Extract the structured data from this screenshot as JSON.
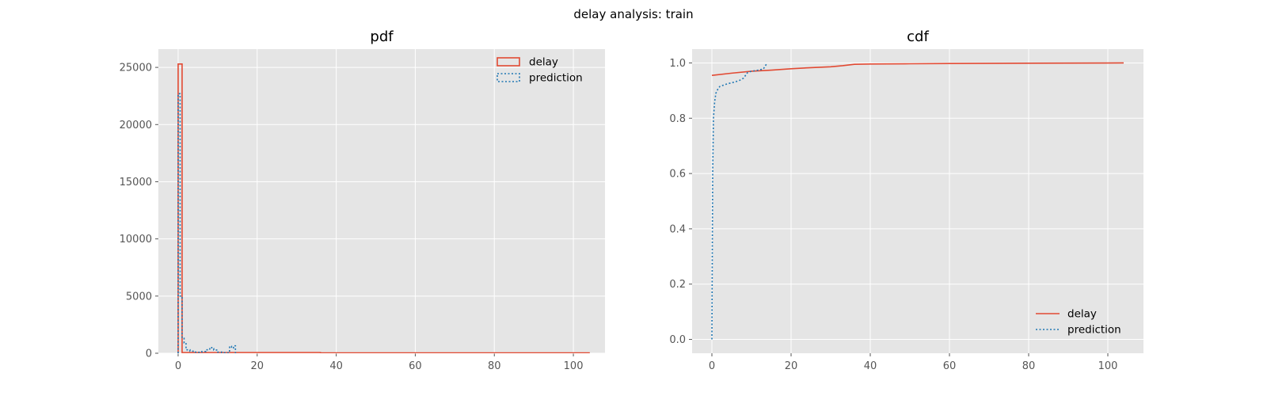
{
  "figure": {
    "suptitle": "delay analysis: train"
  },
  "colors": {
    "delay": "#E24A33",
    "prediction": "#1f77b4",
    "axes_background": "#E5E5E5",
    "grid": "#FFFFFF"
  },
  "chart_data": [
    {
      "type": "histogram",
      "title": "pdf",
      "xlabel": "",
      "ylabel": "",
      "xlim": [
        -5,
        108
      ],
      "ylim": [
        0,
        26600
      ],
      "xticks": [
        0,
        20,
        40,
        60,
        80,
        100
      ],
      "xtick_labels": [
        "0",
        "20",
        "40",
        "60",
        "80",
        "100"
      ],
      "yticks": [
        0,
        5000,
        10000,
        15000,
        20000,
        25000
      ],
      "ytick_labels": [
        "0",
        "5000",
        "10000",
        "15000",
        "20000",
        "25000"
      ],
      "grid": true,
      "legend_position": "upper right",
      "series": [
        {
          "name": "delay",
          "style": "solid step outline",
          "x": [
            0,
            1,
            30,
            36,
            104
          ],
          "y": [
            25300,
            60,
            60,
            30,
            0
          ]
        },
        {
          "name": "prediction",
          "style": "dotted step outline",
          "x": [
            0,
            0.5,
            1,
            1.5,
            2,
            3,
            4,
            5,
            6,
            7,
            8,
            8.5,
            9,
            10,
            11,
            12,
            13,
            13.5,
            14,
            14.5
          ],
          "y": [
            22700,
            5000,
            1300,
            900,
            300,
            180,
            100,
            80,
            150,
            300,
            500,
            400,
            280,
            100,
            50,
            30,
            600,
            450,
            650,
            0
          ]
        }
      ]
    },
    {
      "type": "line",
      "title": "cdf",
      "xlabel": "",
      "ylabel": "",
      "xlim": [
        -5,
        109
      ],
      "ylim": [
        -0.05,
        1.05
      ],
      "xticks": [
        0,
        20,
        40,
        60,
        80,
        100
      ],
      "xtick_labels": [
        "0",
        "20",
        "40",
        "60",
        "80",
        "100"
      ],
      "yticks": [
        0.0,
        0.2,
        0.4,
        0.6,
        0.8,
        1.0
      ],
      "ytick_labels": [
        "0.0",
        "0.2",
        "0.4",
        "0.6",
        "0.8",
        "1.0"
      ],
      "grid": true,
      "legend_position": "lower right",
      "series": [
        {
          "name": "delay",
          "style": "solid",
          "x": [
            0,
            5,
            10,
            15,
            20,
            25,
            30,
            33,
            36,
            40,
            50,
            60,
            80,
            104
          ],
          "y": [
            0.955,
            0.963,
            0.97,
            0.974,
            0.979,
            0.983,
            0.986,
            0.99,
            0.995,
            0.996,
            0.997,
            0.998,
            0.999,
            1.0
          ]
        },
        {
          "name": "prediction",
          "style": "dotted",
          "x": [
            0,
            0.1,
            0.2,
            0.4,
            0.7,
            1,
            1.5,
            2,
            3,
            4,
            5,
            6,
            7,
            8,
            9,
            10,
            11,
            12,
            13,
            13.5,
            14
          ],
          "y": [
            0.0,
            0.3,
            0.6,
            0.8,
            0.86,
            0.89,
            0.905,
            0.915,
            0.92,
            0.925,
            0.928,
            0.932,
            0.937,
            0.945,
            0.965,
            0.97,
            0.972,
            0.975,
            0.978,
            0.99,
            1.0
          ]
        }
      ]
    }
  ]
}
